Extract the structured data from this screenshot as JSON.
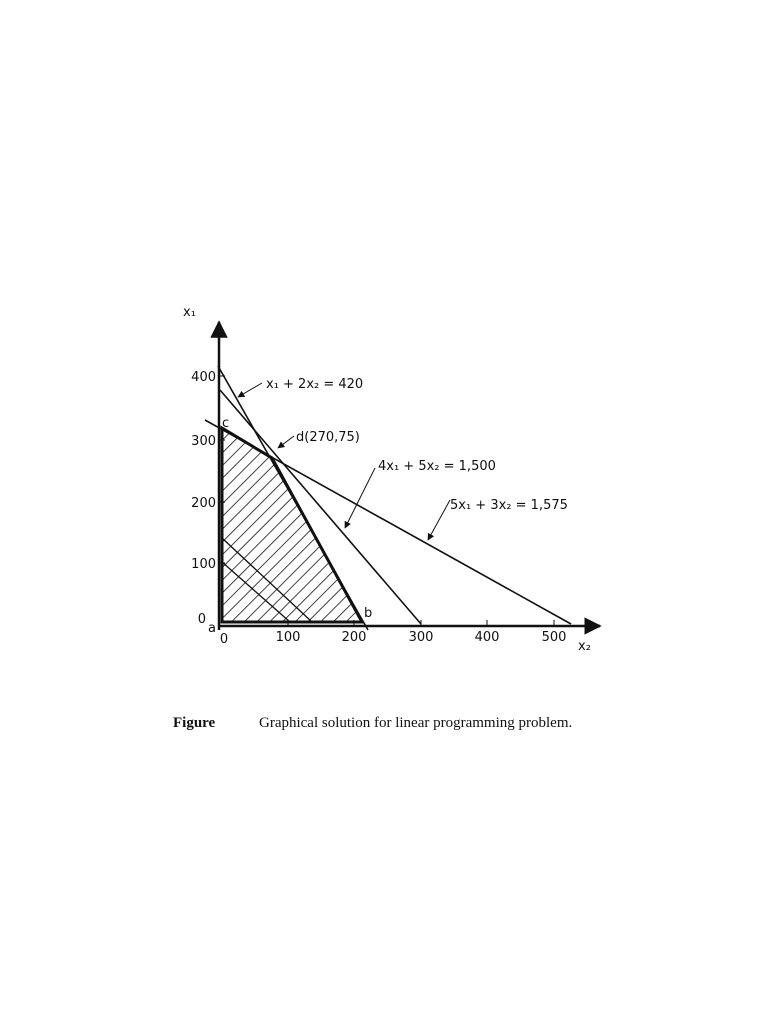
{
  "figure": {
    "axes": {
      "y_label": "x₁",
      "x_label": "x₂",
      "y_ticks": [
        "0",
        "100",
        "200",
        "300",
        "400"
      ],
      "x_ticks": [
        "0",
        "100",
        "200",
        "300",
        "400",
        "500"
      ]
    },
    "lines": [
      {
        "label": "x₁ + 2x₂ = 420"
      },
      {
        "label": "4x₁ + 5x₂ = 1,500"
      },
      {
        "label": "5x₁ + 3x₂ = 1,575"
      }
    ],
    "points": [
      {
        "label": "a"
      },
      {
        "label": "b"
      },
      {
        "label": "c"
      },
      {
        "label": "d(270,75)"
      }
    ]
  },
  "caption": {
    "label": "Figure",
    "text": "Graphical solution for linear programming problem."
  }
}
